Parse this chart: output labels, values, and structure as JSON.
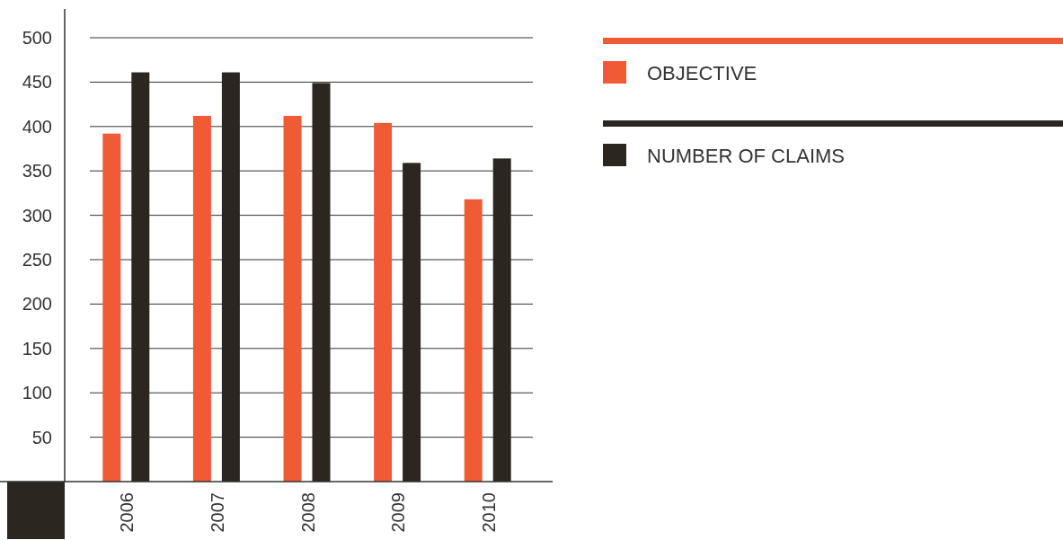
{
  "chart_data": {
    "type": "bar",
    "categories": [
      "2006",
      "2007",
      "2008",
      "2009",
      "2010"
    ],
    "series": [
      {
        "name": "OBJECTIVE",
        "color": "#f05a35",
        "values": [
          392,
          412,
          412,
          404,
          318
        ]
      },
      {
        "name": "NUMBER OF CLAIMS",
        "color": "#2b2620",
        "values": [
          461,
          461,
          449,
          359,
          364
        ]
      }
    ],
    "ylim": [
      0,
      500
    ],
    "yticks": [
      50,
      100,
      150,
      200,
      250,
      300,
      350,
      400,
      450,
      500
    ],
    "grid": "y",
    "legend": "right"
  }
}
